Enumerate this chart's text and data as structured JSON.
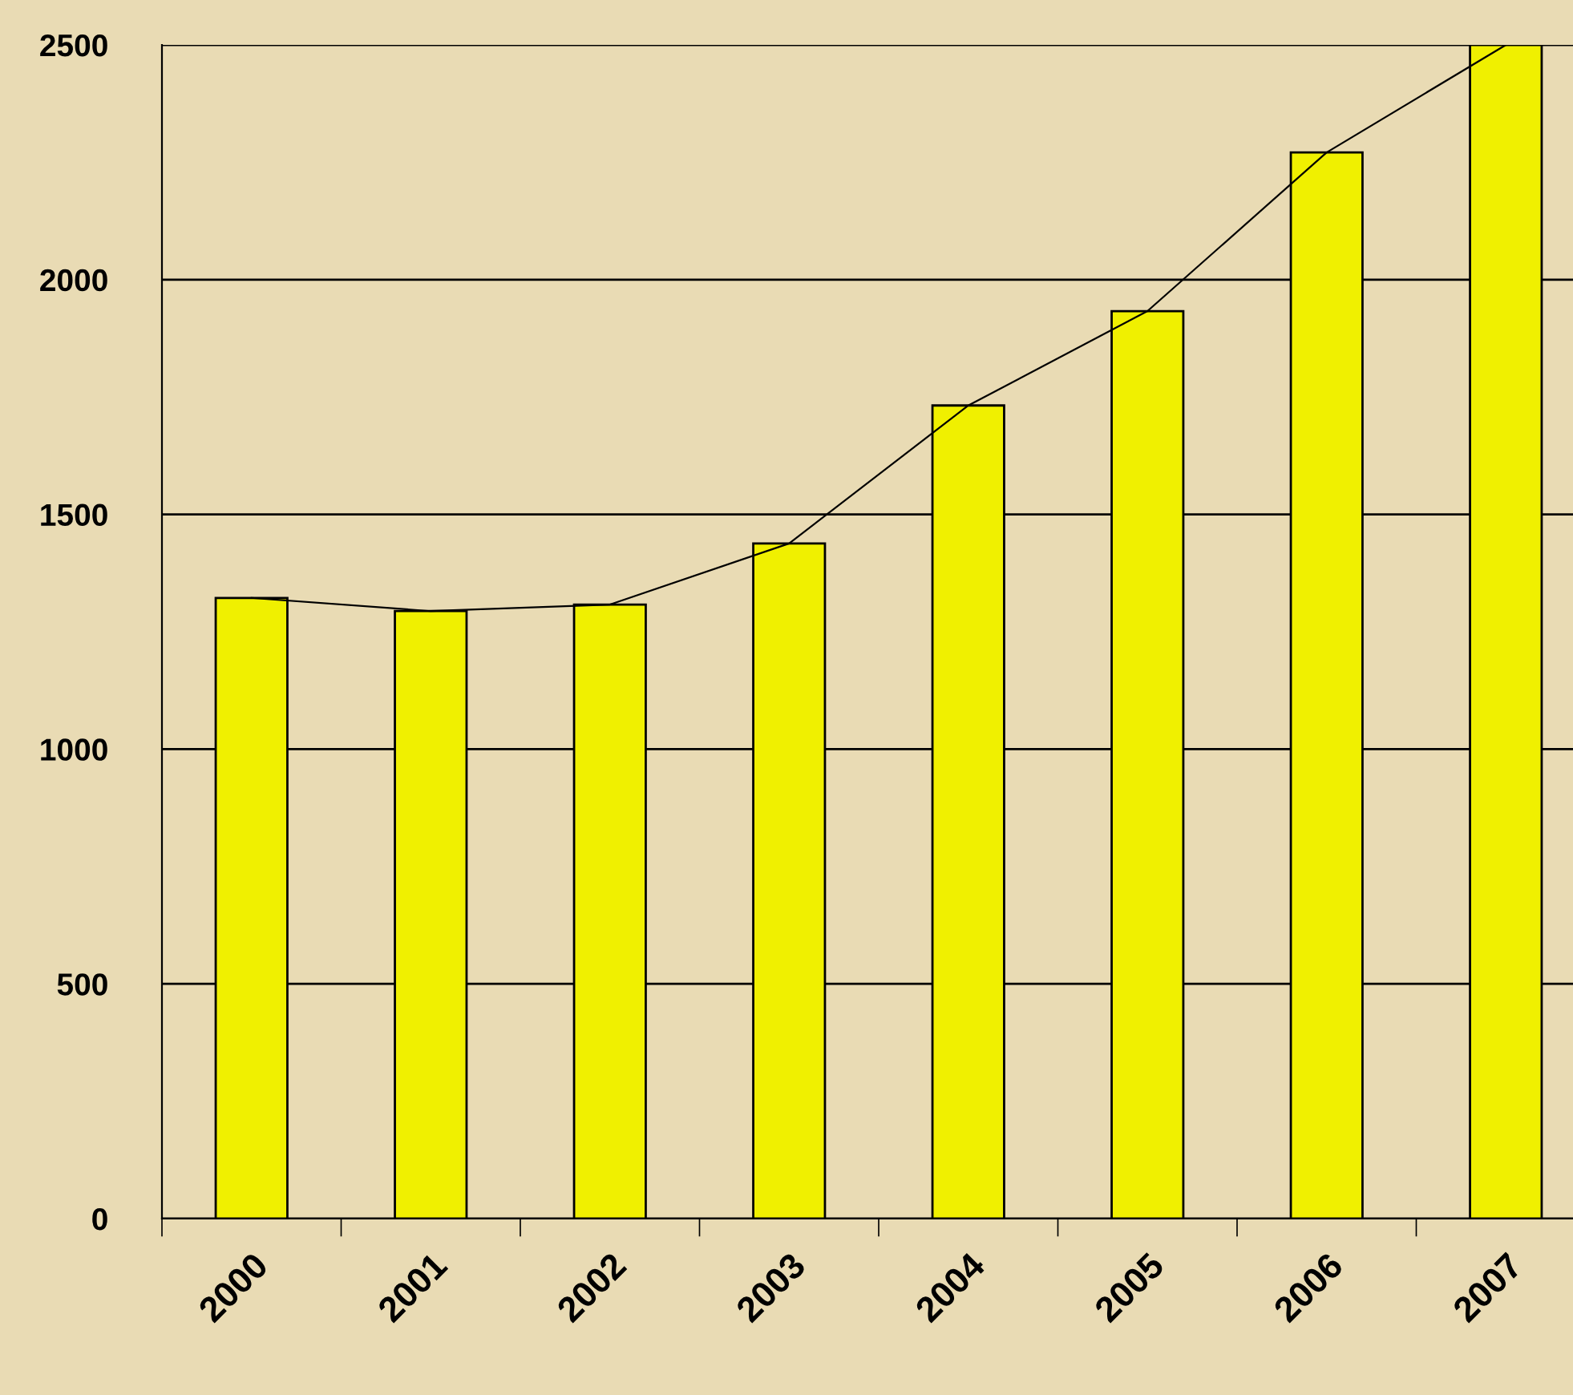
{
  "chart_data": {
    "type": "bar",
    "categories": [
      "2000",
      "2001",
      "2002",
      "2003",
      "2004",
      "2005",
      "2006",
      "2007"
    ],
    "series": [
      {
        "color": "#f0f000",
        "values": [
          1322,
          1294,
          1308,
          1438,
          1732,
          1933,
          2271,
          2500
        ]
      },
      {
        "type": "line",
        "color": "#000000",
        "marker": "none",
        "line_style": "solid",
        "values": [
          1322,
          1294,
          1308,
          1438,
          1732,
          1933,
          2271,
          2500
        ]
      }
    ],
    "ylim": [
      0,
      2500
    ],
    "yticks": [
      0,
      500,
      1000,
      1500,
      2000,
      2500
    ],
    "grid": "y",
    "legend": false
  }
}
